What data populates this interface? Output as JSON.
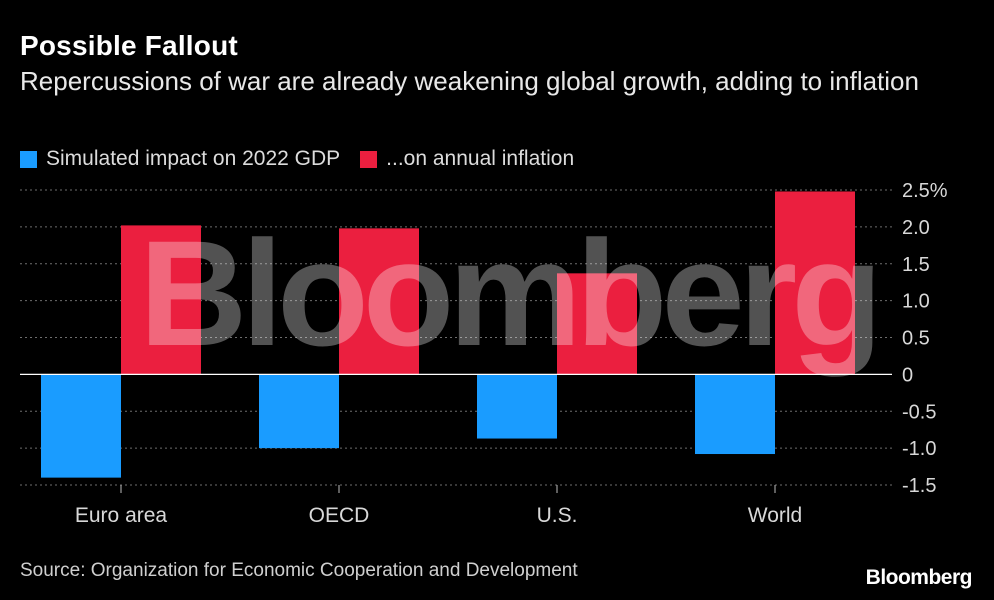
{
  "title": "Possible Fallout",
  "subtitle": "Repercussions of war are already weakening global growth, adding to inflation",
  "source": "Source: Organization for Economic Cooperation and Development",
  "logo": "Bloomberg",
  "watermark": "Bloomberg",
  "colors": {
    "gdp": "#1a9cff",
    "inflation": "#eb1f3f",
    "background": "#000000"
  },
  "chart_data": {
    "type": "bar",
    "categories": [
      "Euro area",
      "OECD",
      "U.S.",
      "World"
    ],
    "series": [
      {
        "name": "Simulated impact on 2022 GDP",
        "values": [
          -1.4,
          -1.0,
          -0.87,
          -1.08
        ]
      },
      {
        "name": "...on annual inflation",
        "values": [
          2.02,
          1.98,
          1.37,
          2.48
        ]
      }
    ],
    "yticks": [
      "2.5%",
      "2.0",
      "1.5",
      "1.0",
      "0.5",
      "0",
      "-0.5",
      "-1.0",
      "-1.5"
    ],
    "ylim": [
      -1.5,
      2.5
    ],
    "grid": true,
    "legend_position": "top-left"
  }
}
